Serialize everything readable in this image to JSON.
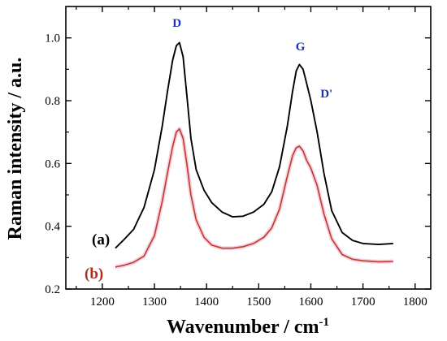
{
  "chart_data": {
    "type": "line",
    "title": "",
    "xlabel_main": "Wavenumber / cm",
    "xlabel_sup": "-1",
    "ylabel": "Raman intensity / a.u.",
    "xlim": [
      1130,
      1830
    ],
    "ylim": [
      0.2,
      1.1
    ],
    "xticks": [
      1200,
      1300,
      1400,
      1500,
      1600,
      1700,
      1800
    ],
    "yticks": [
      0.2,
      0.4,
      0.6,
      0.8,
      1.0
    ],
    "xtick_labels": [
      "1200",
      "1300",
      "1400",
      "1500",
      "1600",
      "1700",
      "1800"
    ],
    "ytick_labels": [
      "0.2",
      "0.4",
      "0.6",
      "0.8",
      "1.0"
    ],
    "grid": false,
    "legend": "none",
    "series": [
      {
        "label": "(a)",
        "color": "#000000",
        "x": [
          1225,
          1240,
          1260,
          1280,
          1300,
          1315,
          1325,
          1335,
          1342,
          1348,
          1355,
          1362,
          1370,
          1380,
          1395,
          1410,
          1430,
          1450,
          1470,
          1490,
          1510,
          1525,
          1540,
          1555,
          1565,
          1572,
          1578,
          1585,
          1592,
          1600,
          1612,
          1625,
          1640,
          1660,
          1680,
          1700,
          1730,
          1758
        ],
        "y": [
          0.33,
          0.355,
          0.39,
          0.46,
          0.58,
          0.72,
          0.83,
          0.93,
          0.975,
          0.985,
          0.94,
          0.82,
          0.68,
          0.58,
          0.515,
          0.475,
          0.445,
          0.43,
          0.432,
          0.445,
          0.47,
          0.51,
          0.59,
          0.72,
          0.83,
          0.895,
          0.915,
          0.9,
          0.855,
          0.8,
          0.7,
          0.57,
          0.45,
          0.38,
          0.355,
          0.345,
          0.342,
          0.345
        ]
      },
      {
        "label": "(b)",
        "color": "#c0392b",
        "x": [
          1225,
          1240,
          1260,
          1280,
          1300,
          1315,
          1325,
          1335,
          1342,
          1348,
          1355,
          1362,
          1370,
          1380,
          1395,
          1410,
          1430,
          1450,
          1470,
          1490,
          1510,
          1525,
          1540,
          1555,
          1565,
          1572,
          1578,
          1585,
          1592,
          1600,
          1612,
          1625,
          1640,
          1660,
          1680,
          1700,
          1730,
          1758
        ],
        "y": [
          0.27,
          0.275,
          0.285,
          0.305,
          0.37,
          0.48,
          0.57,
          0.655,
          0.7,
          0.71,
          0.68,
          0.6,
          0.5,
          0.42,
          0.365,
          0.34,
          0.33,
          0.33,
          0.335,
          0.345,
          0.365,
          0.395,
          0.455,
          0.56,
          0.625,
          0.65,
          0.655,
          0.64,
          0.61,
          0.585,
          0.53,
          0.44,
          0.36,
          0.31,
          0.295,
          0.29,
          0.287,
          0.288
        ]
      }
    ],
    "annotations": [
      {
        "text": "D",
        "x": 1343,
        "y": 1.035
      },
      {
        "text": "G",
        "x": 1580,
        "y": 0.96
      },
      {
        "text": "D'",
        "x": 1630,
        "y": 0.81
      }
    ]
  }
}
